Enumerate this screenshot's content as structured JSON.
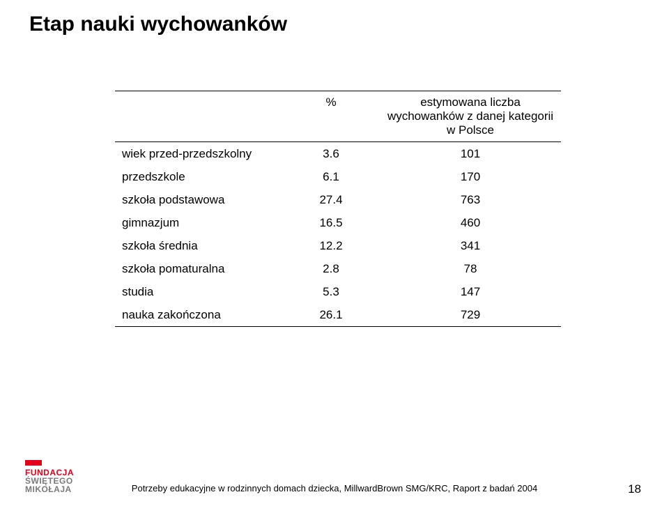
{
  "title": "Etap nauki wychowanków",
  "table": {
    "headers": {
      "pct": "%",
      "est": "estymowana liczba wychowanków z danej kategorii w Polsce"
    },
    "rows": [
      {
        "label": "wiek przed-przedszkolny",
        "pct": "3.6",
        "est": "101"
      },
      {
        "label": "przedszkole",
        "pct": "6.1",
        "est": "170"
      },
      {
        "label": "szkoła podstawowa",
        "pct": "27.4",
        "est": "763"
      },
      {
        "label": "gimnazjum",
        "pct": "16.5",
        "est": "460"
      },
      {
        "label": "szkoła średnia",
        "pct": "12.2",
        "est": "341"
      },
      {
        "label": "szkoła pomaturalna",
        "pct": "2.8",
        "est": "78"
      },
      {
        "label": "studia",
        "pct": "5.3",
        "est": "147"
      },
      {
        "label": "nauka zakończona",
        "pct": "26.1",
        "est": "729"
      }
    ]
  },
  "logo": {
    "line1": "FUNDACJA",
    "line2": "ŚWIĘTEGO",
    "line3": "MIKOŁAJA"
  },
  "footer": "Potrzeby edukacyjne w rodzinnych domach dziecka, MillwardBrown SMG/KRC, Raport z badań 2004",
  "page_number": "18"
}
